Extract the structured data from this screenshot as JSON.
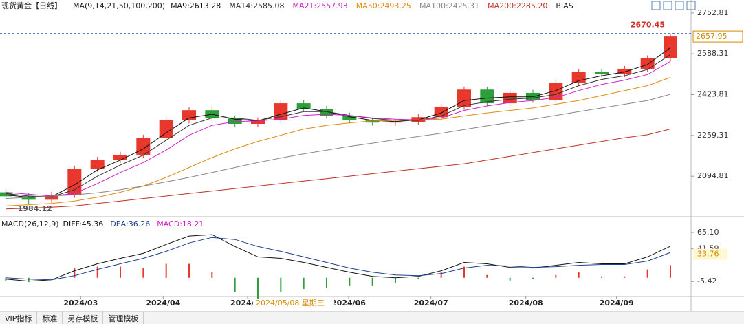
{
  "chart_data": [
    {
      "type": "candlestick",
      "title": "现货黄金【日线】",
      "subtitle": "MA(9,14,21,50,100,200)",
      "extra_legend": "BIAS",
      "cursor_label": "2024/05/08 星期三",
      "up_color": "#e8372c",
      "down_color": "#2e9e3a",
      "candles": [
        [
          2030,
          2042,
          2002,
          2014
        ],
        [
          2014,
          2026,
          1984.12,
          2000
        ],
        [
          2000,
          2032,
          1988,
          2020
        ],
        [
          2020,
          2137,
          2008,
          2125
        ],
        [
          2125,
          2173,
          2113,
          2161
        ],
        [
          2161,
          2193,
          2149,
          2181
        ],
        [
          2181,
          2262,
          2169,
          2250
        ],
        [
          2250,
          2332,
          2238,
          2320
        ],
        [
          2320,
          2373,
          2308,
          2361
        ],
        [
          2361,
          2373,
          2316,
          2328
        ],
        [
          2328,
          2340,
          2294,
          2306
        ],
        [
          2306,
          2332,
          2294,
          2320
        ],
        [
          2320,
          2401,
          2308,
          2389
        ],
        [
          2389,
          2401,
          2355,
          2367
        ],
        [
          2367,
          2379,
          2327,
          2339
        ],
        [
          2339,
          2351,
          2308,
          2320
        ],
        [
          2320,
          2332,
          2299,
          2311
        ],
        [
          2311,
          2326,
          2299,
          2314
        ],
        [
          2314,
          2345,
          2302,
          2333
        ],
        [
          2333,
          2387,
          2321,
          2375
        ],
        [
          2375,
          2456,
          2363,
          2444
        ],
        [
          2444,
          2456,
          2377,
          2389
        ],
        [
          2389,
          2443,
          2377,
          2431
        ],
        [
          2431,
          2443,
          2391,
          2403
        ],
        [
          2403,
          2484,
          2391,
          2472
        ],
        [
          2472,
          2526,
          2460,
          2514
        ],
        [
          2514,
          2526,
          2494,
          2506
        ],
        [
          2506,
          2540,
          2494,
          2528
        ],
        [
          2528,
          2582,
          2516,
          2570
        ],
        [
          2570,
          2670.45,
          2558,
          2657.95
        ]
      ],
      "series": [
        {
          "name": "MA9:2613.28",
          "color": "#111111",
          "values": [
            2020,
            2010,
            2012,
            2060,
            2120,
            2160,
            2205,
            2270,
            2330,
            2345,
            2325,
            2318,
            2345,
            2370,
            2355,
            2335,
            2320,
            2315,
            2322,
            2350,
            2400,
            2410,
            2415,
            2415,
            2440,
            2480,
            2500,
            2515,
            2545,
            2613.28
          ]
        },
        {
          "name": "MA14:2585.08",
          "color": "#333333",
          "values": [
            2025,
            2015,
            2012,
            2040,
            2095,
            2140,
            2180,
            2240,
            2300,
            2330,
            2330,
            2320,
            2335,
            2355,
            2355,
            2340,
            2328,
            2320,
            2320,
            2338,
            2380,
            2395,
            2405,
            2410,
            2425,
            2460,
            2485,
            2500,
            2525,
            2585.08
          ]
        },
        {
          "name": "MA21:2557.93",
          "color": "#d020c8",
          "values": [
            2030,
            2022,
            2015,
            2025,
            2065,
            2110,
            2150,
            2200,
            2260,
            2300,
            2315,
            2318,
            2325,
            2340,
            2345,
            2340,
            2330,
            2325,
            2322,
            2330,
            2360,
            2378,
            2392,
            2400,
            2412,
            2440,
            2465,
            2482,
            2505,
            2557.93
          ]
        },
        {
          "name": "MA50:2493.25",
          "color": "#e08a10",
          "values": [
            1975,
            1980,
            1985,
            1995,
            2010,
            2030,
            2055,
            2090,
            2130,
            2170,
            2205,
            2235,
            2260,
            2285,
            2300,
            2310,
            2318,
            2320,
            2322,
            2325,
            2338,
            2350,
            2360,
            2370,
            2385,
            2400,
            2420,
            2440,
            2460,
            2493.25
          ]
        },
        {
          "name": "MA100:2425.31",
          "color": "#888888",
          "values": [
            2005,
            2010,
            2015,
            2020,
            2028,
            2040,
            2055,
            2072,
            2090,
            2110,
            2130,
            2150,
            2168,
            2185,
            2200,
            2215,
            2228,
            2242,
            2255,
            2268,
            2283,
            2298,
            2312,
            2325,
            2340,
            2355,
            2370,
            2385,
            2400,
            2425.31
          ]
        },
        {
          "name": "MA200:2285.20",
          "color": "#c0302a",
          "values": [
            1963,
            1966,
            1970,
            1975,
            1985,
            1995,
            2005,
            2015,
            2025,
            2035,
            2045,
            2055,
            2065,
            2075,
            2085,
            2095,
            2105,
            2115,
            2125,
            2135,
            2145,
            2160,
            2175,
            2190,
            2205,
            2220,
            2235,
            2250,
            2262,
            2285.2
          ]
        }
      ],
      "xlim": [
        -0.25,
        29.9
      ],
      "ylim": [
        1940,
        2783
      ],
      "yticks": [
        2094.81,
        2259.31,
        2423.81,
        2588.31,
        2752.81
      ],
      "xticks": [
        {
          "value": 3.27,
          "label": "2024/03"
        },
        {
          "value": 6.87,
          "label": "2024/04"
        },
        {
          "value": 10.55,
          "label": "2024/05"
        },
        {
          "value": 14.96,
          "label": "2024/06"
        },
        {
          "value": 18.55,
          "label": "2024/07"
        },
        {
          "value": 22.69,
          "label": "2024/08"
        },
        {
          "value": 26.65,
          "label": "2024/09"
        }
      ],
      "high_label": 2670.45,
      "low_label": 1984.12,
      "last_price": 2657.95
    },
    {
      "type": "macd",
      "title": "MACD(26,12,9)",
      "up_color": "#e8372c",
      "down_color": "#2e9e3a",
      "series": [
        {
          "name": "DIFF:45.36",
          "color": "#111111",
          "values": [
            -2,
            -5,
            -3,
            10,
            20,
            28,
            35,
            48,
            60,
            62,
            45,
            30,
            28,
            22,
            15,
            8,
            2,
            0,
            2,
            10,
            22,
            20,
            15,
            14,
            18,
            22,
            20,
            20,
            30,
            45.36
          ]
        },
        {
          "name": "DEA:36.26",
          "color": "#1f3f8f",
          "values": [
            0,
            -2,
            -3,
            3,
            12,
            20,
            28,
            38,
            50,
            58,
            55,
            45,
            38,
            30,
            22,
            14,
            8,
            4,
            3,
            6,
            14,
            18,
            17,
            15,
            16,
            18,
            19,
            19,
            24,
            36.26
          ]
        },
        {
          "name": "MACD:18.21",
          "color": "#d020c8",
          "values": [
            -4,
            -6,
            0,
            14,
            16,
            16,
            14,
            20,
            20,
            8,
            -20,
            -30,
            -20,
            -16,
            -14,
            -12,
            -12,
            -8,
            -2,
            8,
            16,
            4,
            -4,
            -2,
            4,
            8,
            2,
            2,
            12,
            18.21
          ]
        }
      ],
      "ylim": [
        -26,
        73
      ],
      "yticks": [
        -5.42,
        41.59,
        {
          "value": 65.1,
          "label": "65.10"
        }
      ],
      "last_value": 33.76
    }
  ],
  "tabs": [
    "VIP指标",
    "标准",
    "另存模板",
    "管理模板"
  ]
}
